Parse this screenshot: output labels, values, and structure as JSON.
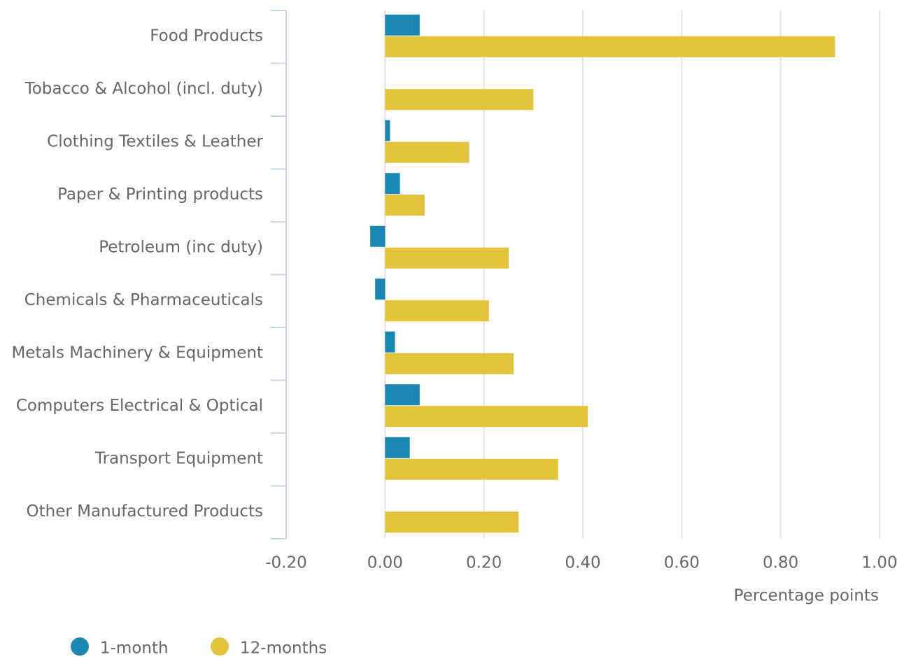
{
  "chart_data": {
    "type": "hbar",
    "categories": [
      "Food Products",
      "Tobacco & Alcohol (incl. duty)",
      "Clothing Textiles & Leather",
      "Paper & Printing products",
      "Petroleum (inc duty)",
      "Chemicals & Pharmaceuticals",
      "Metals Machinery & Equipment",
      "Computers Electrical & Optical",
      "Transport Equipment",
      "Other Manufactured Products"
    ],
    "series": [
      {
        "name": "1-month",
        "color": "#1a87b2",
        "values": [
          0.07,
          0,
          0.01,
          0.03,
          -0.03,
          -0.02,
          0.02,
          0.07,
          0.05,
          0
        ]
      },
      {
        "name": "12-months",
        "color": "#e3c33a",
        "values": [
          0.91,
          0.3,
          0.17,
          0.08,
          0.25,
          0.21,
          0.26,
          0.41,
          0.35,
          0.27
        ]
      }
    ],
    "xlabel": "Percentage points",
    "xlim": [
      -0.2,
      1.0
    ],
    "xticks": [
      {
        "value": -0.2,
        "label": "-0.20"
      },
      {
        "value": 0,
        "label": "0.00"
      },
      {
        "value": 0.2,
        "label": "0.20"
      },
      {
        "value": 0.4,
        "label": "0.40"
      },
      {
        "value": 0.6,
        "label": "0.60"
      },
      {
        "value": 0.8,
        "label": "0.80"
      },
      {
        "value": 1.0,
        "label": "1.00"
      }
    ],
    "grid": true,
    "legend": "bottom-left"
  }
}
